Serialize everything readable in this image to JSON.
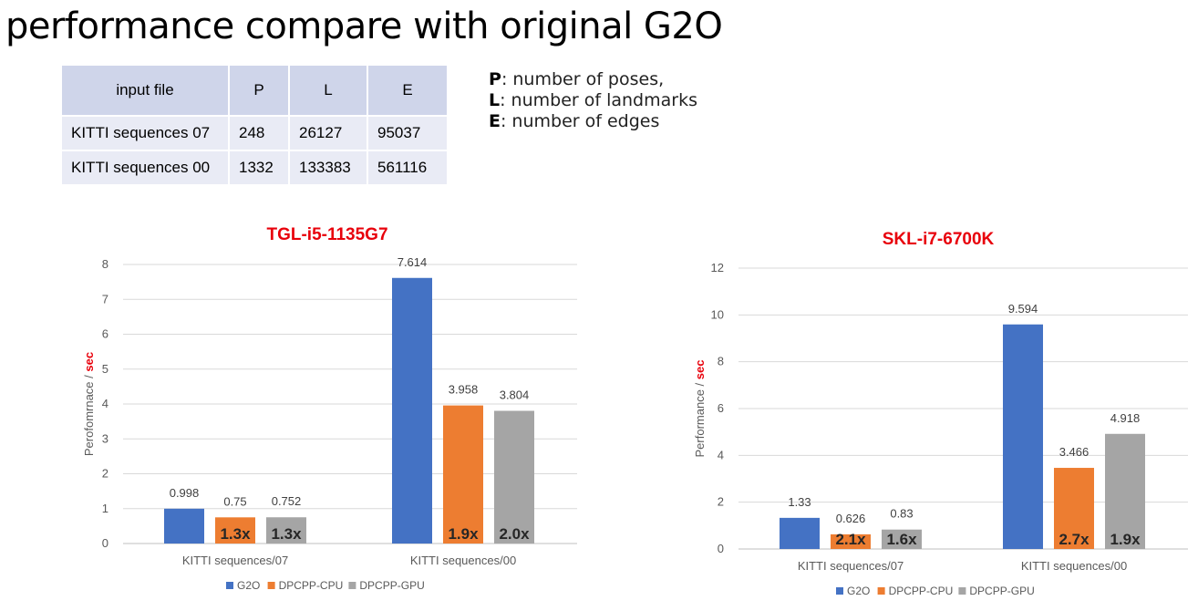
{
  "slide": {
    "title": "performance compare with original G2O"
  },
  "table": {
    "headers": [
      "input file",
      "P",
      "L",
      "E"
    ],
    "rows": [
      [
        "KITTI sequences 07",
        "248",
        "26127",
        "95037"
      ],
      [
        "KITTI sequences 00",
        "1332",
        "133383",
        "561116"
      ]
    ]
  },
  "notes": [
    {
      "key": "P",
      "text": ": number of poses,"
    },
    {
      "key": "L",
      "text": ": number of landmarks"
    },
    {
      "key": "E",
      "text": ": number of edges"
    }
  ],
  "colors": {
    "G2O": "#4472c4",
    "DPCPP-CPU": "#ed7d31",
    "DPCPP-GPU": "#a5a5a5",
    "title": "#e8000b",
    "grid": "#d9d9d9"
  },
  "chart_data": [
    {
      "type": "bar",
      "title": "TGL-i5-1135G7",
      "ylabel": "Perofomrnace / ",
      "ylabel_unit": "sec",
      "ylim": [
        0,
        8
      ],
      "yticks": [
        0,
        1,
        2,
        3,
        4,
        5,
        6,
        7,
        8
      ],
      "categories": [
        "KITTI sequences/07",
        "KITTI sequences/00"
      ],
      "series": [
        {
          "name": "G2O",
          "values": [
            0.998,
            7.614
          ],
          "labels": [
            "0.998",
            "7.614"
          ]
        },
        {
          "name": "DPCPP-CPU",
          "values": [
            0.75,
            3.958
          ],
          "labels": [
            "0.75",
            "3.958"
          ],
          "speedups": [
            "1.3x",
            "1.9x"
          ]
        },
        {
          "name": "DPCPP-GPU",
          "values": [
            0.752,
            3.804
          ],
          "labels": [
            "0.752",
            "3.804"
          ],
          "speedups": [
            "1.3x",
            "2.0x"
          ]
        }
      ],
      "grid": true,
      "legend": "bottom"
    },
    {
      "type": "bar",
      "title": "SKL-i7-6700K",
      "ylabel": "Performance / ",
      "ylabel_unit": "sec",
      "ylim": [
        0,
        12
      ],
      "yticks": [
        0,
        2,
        4,
        6,
        8,
        10,
        12
      ],
      "categories": [
        "KITTI sequences/07",
        "KITTI sequences/00"
      ],
      "series": [
        {
          "name": "G2O",
          "values": [
            1.33,
            9.594
          ],
          "labels": [
            "1.33",
            "9.594"
          ]
        },
        {
          "name": "DPCPP-CPU",
          "values": [
            0.626,
            3.466
          ],
          "labels": [
            "0.626",
            "3.466"
          ],
          "speedups": [
            "2.1x",
            "2.7x"
          ]
        },
        {
          "name": "DPCPP-GPU",
          "values": [
            0.83,
            4.918
          ],
          "labels": [
            "0.83",
            "4.918"
          ],
          "speedups": [
            "1.6x",
            "1.9x"
          ]
        }
      ],
      "grid": true,
      "legend": "bottom"
    }
  ]
}
